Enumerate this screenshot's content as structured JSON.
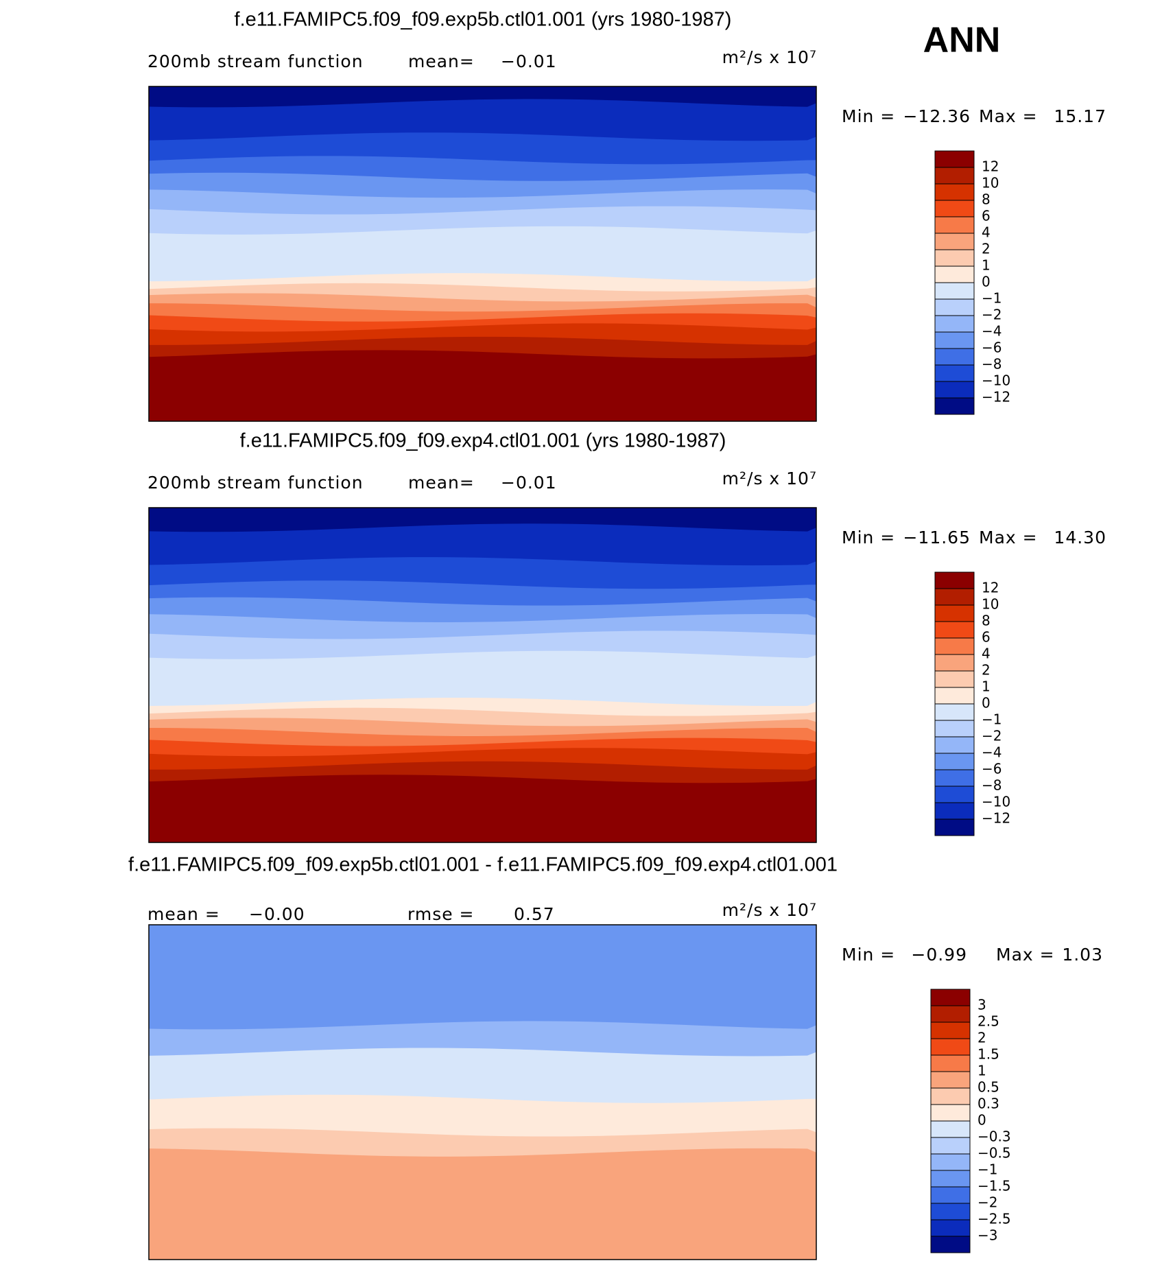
{
  "figure_label": "ANN",
  "panels": [
    {
      "title": "f.e11.FAMIPC5.f09_f09.exp5b.ctl01.001 (yrs 1980-1987)",
      "subtitle": [
        "200mb stream function",
        "mean=",
        "−0.01"
      ],
      "units": "m²/s x 10⁷",
      "minmax": [
        "Min =",
        "−12.36",
        "Max =",
        "15.17"
      ],
      "colorbar": {
        "labels": [
          "12",
          "10",
          "8",
          "6",
          "4",
          "2",
          "1",
          "0",
          "−1",
          "−2",
          "−4",
          "−6",
          "−8",
          "−10",
          "−12"
        ],
        "colors": [
          "#8b0000",
          "#b21e00",
          "#d63200",
          "#f04a16",
          "#f77a48",
          "#f9a47c",
          "#fccbb0",
          "#feeadb",
          "#d7e6fa",
          "#b9d0fb",
          "#94b6f8",
          "#6a96f1",
          "#3f6fe6",
          "#1e4cd6",
          "#0b2cbc",
          "#000c85"
        ]
      }
    },
    {
      "title": "f.e11.FAMIPC5.f09_f09.exp4.ctl01.001 (yrs 1980-1987)",
      "subtitle": [
        "200mb stream function",
        "mean=",
        "−0.01"
      ],
      "units": "m²/s x 10⁷",
      "minmax": [
        "Min =",
        "−11.65",
        "Max =",
        "14.30"
      ],
      "colorbar": {
        "labels": [
          "12",
          "10",
          "8",
          "6",
          "4",
          "2",
          "1",
          "0",
          "−1",
          "−2",
          "−4",
          "−6",
          "−8",
          "−10",
          "−12"
        ],
        "colors": [
          "#8b0000",
          "#b21e00",
          "#d63200",
          "#f04a16",
          "#f77a48",
          "#f9a47c",
          "#fccbb0",
          "#feeadb",
          "#d7e6fa",
          "#b9d0fb",
          "#94b6f8",
          "#6a96f1",
          "#3f6fe6",
          "#1e4cd6",
          "#0b2cbc",
          "#000c85"
        ]
      }
    },
    {
      "title": "f.e11.FAMIPC5.f09_f09.exp5b.ctl01.001 - f.e11.FAMIPC5.f09_f09.exp4.ctl01.001",
      "subtitle": [
        "mean =",
        "−0.00",
        "rmse =",
        "0.57"
      ],
      "units": "m²/s x 10⁷",
      "minmax": [
        "Min =",
        "−0.99",
        "Max =",
        "1.03"
      ],
      "colorbar": {
        "labels": [
          "3",
          "2.5",
          "2",
          "1.5",
          "1",
          "0.5",
          "0.3",
          "0",
          "−0.3",
          "−0.5",
          "−1",
          "−1.5",
          "−2",
          "−2.5",
          "−3"
        ],
        "colors": [
          "#8b0000",
          "#b21e00",
          "#d63200",
          "#f04a16",
          "#f77a48",
          "#f9a47c",
          "#fccbb0",
          "#feeadb",
          "#d7e6fa",
          "#b9d0fb",
          "#94b6f8",
          "#6a96f1",
          "#3f6fe6",
          "#1e4cd6",
          "#0b2cbc",
          "#000c85"
        ]
      }
    }
  ]
}
